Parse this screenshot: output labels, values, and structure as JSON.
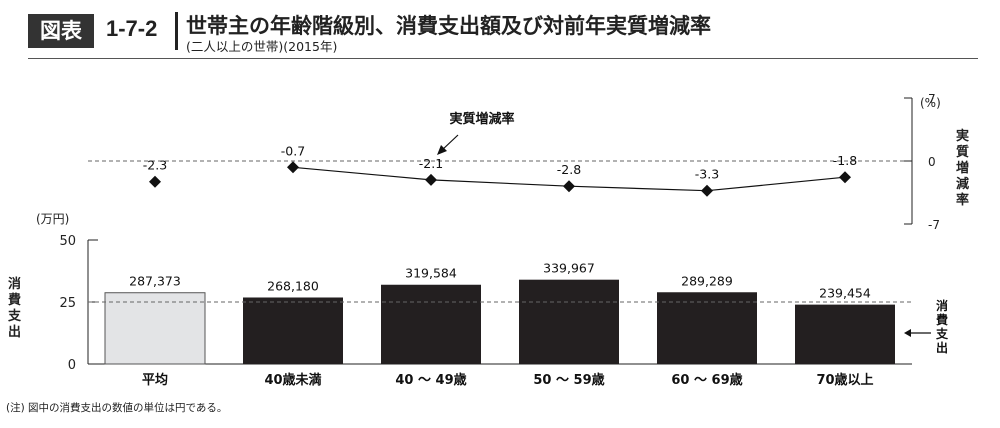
{
  "header": {
    "badge": "図表",
    "figure_number": "1-7-2",
    "title": "世帯主の年齢階級別、消費支出額及び対前年実質増減率",
    "subtitle": "(二人以上の世帯)(2015年)"
  },
  "note": "(注) 図中の消費支出の数値の単位は円である。",
  "chart_data": {
    "type": "bar",
    "categories": [
      "平均",
      "40歳未満",
      "40 ～ 49歳",
      "50 ～ 59歳",
      "60 ～ 69歳",
      "70歳以上"
    ],
    "values": [
      287373,
      268180,
      319584,
      339967,
      289289,
      239454
    ],
    "value_labels": [
      "287,373",
      "268,180",
      "319,584",
      "339,967",
      "289,289",
      "239,454"
    ],
    "bar_colors": [
      "#e3e4e6",
      "#231f20",
      "#231f20",
      "#231f20",
      "#231f20",
      "#231f20"
    ],
    "ylabel": "消費支出",
    "yunit": "(万円)",
    "ylim": [
      0,
      50
    ],
    "yticks": [
      0,
      25,
      50
    ],
    "reference_line": 25,
    "series_label": "消費支出",
    "line_series": {
      "name": "実質増減率",
      "values": [
        -2.3,
        -0.7,
        -2.1,
        -2.8,
        -3.3,
        -1.8
      ],
      "value_labels": [
        "-2.3",
        "-0.7",
        "-2.1",
        "-2.8",
        "-3.3",
        "-1.8"
      ],
      "ylabel": "実質増減率",
      "yunit": "(%)",
      "ylim": [
        -7,
        7
      ],
      "yticks": [
        7,
        0,
        -7
      ],
      "yticklabels": [
        "7",
        "0",
        "-7"
      ],
      "connected_from_index": 1
    }
  }
}
